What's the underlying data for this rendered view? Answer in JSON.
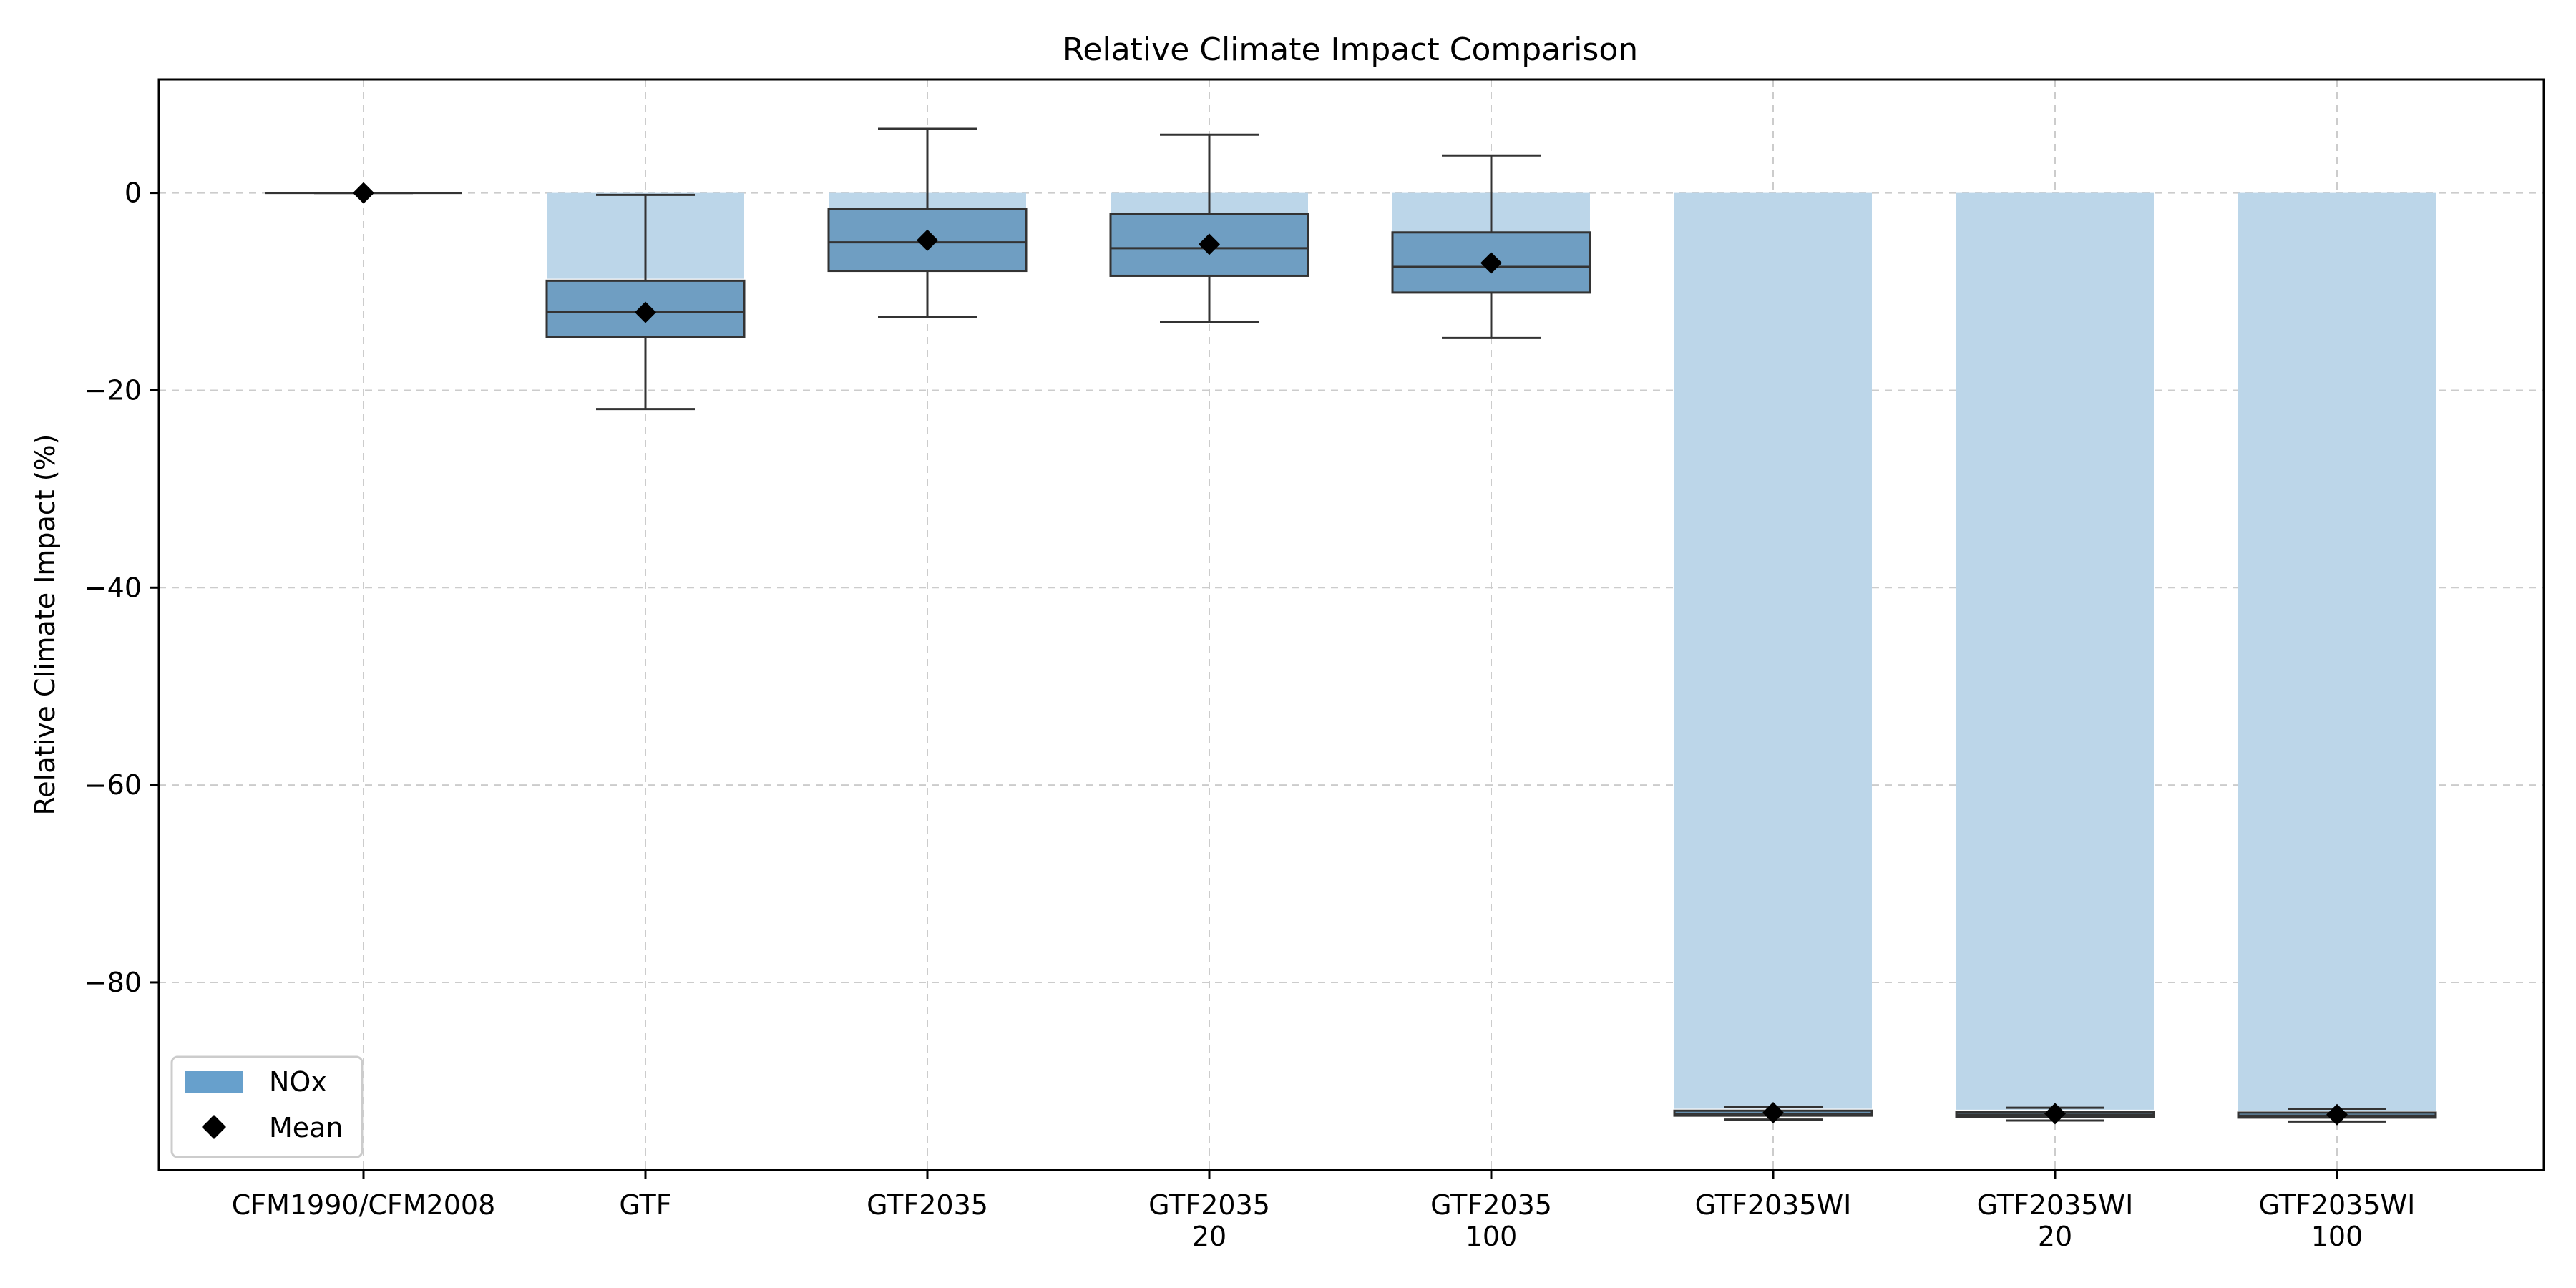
{
  "chart_data": {
    "type": "bar",
    "title": "Relative Climate Impact Comparison",
    "xlabel": "",
    "ylabel": "Relative Climate Impact (%)",
    "ylim": [
      -99,
      11.5
    ],
    "yticks": [
      0,
      -20,
      -40,
      -60,
      -80
    ],
    "ytick_labels": [
      "0",
      "−20",
      "−40",
      "−60",
      "−80"
    ],
    "grid": true,
    "legend": {
      "placement": "lower-left",
      "entries": [
        "NOx",
        "Mean"
      ]
    },
    "categories": [
      [
        "CFM1990/CFM2008"
      ],
      [
        "GTF"
      ],
      [
        "GTF2035"
      ],
      [
        "GTF2035",
        "20"
      ],
      [
        "GTF2035",
        "100"
      ],
      [
        "GTF2035WI"
      ],
      [
        "GTF2035WI",
        "20"
      ],
      [
        "GTF2035WI",
        "100"
      ]
    ],
    "series": [
      {
        "name": "NOx",
        "chart_type": "bar",
        "color": "#bcd6e9",
        "values": [
          0,
          -8.7,
          -1.6,
          -2.1,
          -4.0,
          -92.8,
          -92.9,
          -93.0
        ]
      },
      {
        "name": "Mean",
        "chart_type": "scatter",
        "marker": "diamond",
        "color": "#000000",
        "values": [
          0,
          -12.1,
          -4.8,
          -5.2,
          -7.1,
          -93.2,
          -93.3,
          -93.4
        ]
      }
    ],
    "boxplots": {
      "color": "#6f9ec2",
      "edge_color": "#333333",
      "stats": [
        {
          "whisker_low": 0,
          "q1": 0,
          "median": 0,
          "q3": 0,
          "whisker_high": 0
        },
        {
          "whisker_low": -21.9,
          "q1": -14.6,
          "median": -12.1,
          "q3": -8.9,
          "whisker_high": -0.2
        },
        {
          "whisker_low": -12.6,
          "q1": -7.9,
          "median": -5.0,
          "q3": -1.6,
          "whisker_high": 6.5
        },
        {
          "whisker_low": -13.1,
          "q1": -8.4,
          "median": -5.6,
          "q3": -2.1,
          "whisker_high": 5.9
        },
        {
          "whisker_low": -14.7,
          "q1": -10.1,
          "median": -7.5,
          "q3": -4.0,
          "whisker_high": 3.8
        },
        {
          "whisker_low": -93.9,
          "q1": -93.5,
          "median": -93.3,
          "q3": -93.0,
          "whisker_high": -92.6
        },
        {
          "whisker_low": -94.0,
          "q1": -93.6,
          "median": -93.4,
          "q3": -93.1,
          "whisker_high": -92.7
        },
        {
          "whisker_low": -94.1,
          "q1": -93.7,
          "median": -93.5,
          "q3": -93.2,
          "whisker_high": -92.8
        }
      ]
    },
    "colors": {
      "bar": "#bcd6e9",
      "box": "#6f9ec2",
      "legend_patch": "#67a0cc",
      "edge": "#333333",
      "grid": "#cccccc",
      "mean": "#000000"
    }
  }
}
